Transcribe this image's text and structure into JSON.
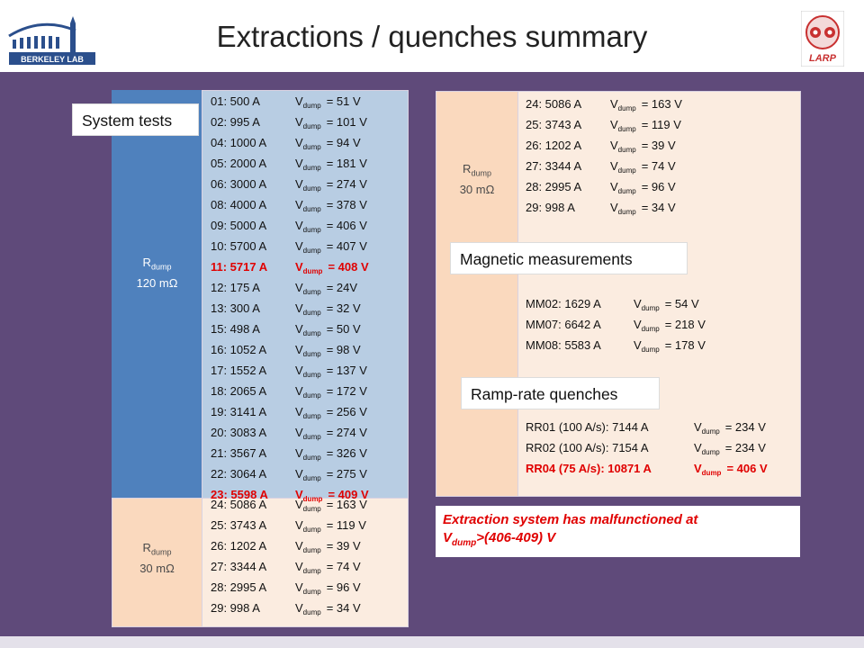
{
  "title": "Extractions / quenches summary",
  "logos": {
    "left_text": "BERKELEY LAB",
    "right_text": "LARP"
  },
  "colors": {
    "band": "#5f4a7a",
    "blue_panel": "#b8cde3",
    "blue_label": "#4f81bd",
    "peach_label": "#fad9be",
    "peach_panel": "#fbece0",
    "red": "#e00000"
  },
  "left": {
    "rdump_high": {
      "r": "R",
      "sub": "dump",
      "value": "120 mΩ"
    },
    "rdump_low": {
      "r": "R",
      "sub": "dump",
      "value": "30 mΩ"
    },
    "system_tests_label": "System tests",
    "rows_high": [
      {
        "name": "01: 500 A",
        "v": "= 51 V",
        "red": false
      },
      {
        "name": "02: 995 A",
        "v": "= 101 V",
        "red": false
      },
      {
        "name": "04: 1000 A",
        "v": "= 94 V",
        "red": false
      },
      {
        "name": "05: 2000 A",
        "v": "= 181 V",
        "red": false
      },
      {
        "name": "06: 3000 A",
        "v": "= 274 V",
        "red": false
      },
      {
        "name": "08: 4000 A",
        "v": "= 378 V",
        "red": false
      },
      {
        "name": "09: 5000 A",
        "v": "= 406 V",
        "red": false
      },
      {
        "name": "10: 5700 A",
        "v": "= 407 V",
        "red": false
      },
      {
        "name": "11: 5717 A",
        "v": "= 408 V",
        "red": true
      },
      {
        "name": "12: 175 A",
        "v": "= 24V",
        "red": false
      },
      {
        "name": "13: 300 A",
        "v": "= 32 V",
        "red": false
      },
      {
        "name": "15: 498 A",
        "v": "= 50 V",
        "red": false
      },
      {
        "name": "16: 1052 A",
        "v": "= 98 V",
        "red": false
      },
      {
        "name": "17: 1552 A",
        "v": "= 137 V",
        "red": false
      },
      {
        "name": "18: 2065 A",
        "v": "= 172 V",
        "red": false
      },
      {
        "name": "19: 3141 A",
        "v": "= 256 V",
        "red": false
      },
      {
        "name": "20: 3083 A",
        "v": "= 274 V",
        "red": false
      },
      {
        "name": "21: 3567 A",
        "v": "= 326 V",
        "red": false
      },
      {
        "name": "22: 3064 A",
        "v": "= 275 V",
        "red": false
      },
      {
        "name": "23: 5598 A",
        "v": "= 409 V",
        "red": true
      }
    ],
    "rows_low": [
      {
        "name": "24: 5086 A",
        "v": "= 163 V",
        "red": false
      },
      {
        "name": "25: 3743 A",
        "v": "= 119 V",
        "red": false
      },
      {
        "name": "26: 1202 A",
        "v": "= 39 V",
        "red": false
      },
      {
        "name": "27: 3344 A",
        "v": "= 74 V",
        "red": false
      },
      {
        "name": "28: 2995 A",
        "v": "= 96 V",
        "red": false
      },
      {
        "name": "29: 998 A",
        "v": "= 34 V",
        "red": false
      }
    ]
  },
  "right": {
    "rdump": {
      "r": "R",
      "sub": "dump",
      "value": "30 mΩ"
    },
    "rows_top": [
      {
        "name": "24: 5086 A",
        "v": "= 163 V",
        "red": false
      },
      {
        "name": "25: 3743 A",
        "v": "= 119 V",
        "red": false
      },
      {
        "name": "26: 1202 A",
        "v": "= 39 V",
        "red": false
      },
      {
        "name": "27: 3344 A",
        "v": "= 74 V",
        "red": false
      },
      {
        "name": "28: 2995 A",
        "v": "= 96 V",
        "red": false
      },
      {
        "name": "29: 998 A",
        "v": "= 34 V",
        "red": false
      }
    ],
    "magnetic_label": "Magnetic measurements",
    "rows_mm": [
      {
        "name": "MM02: 1629 A",
        "v": "= 54 V",
        "red": false
      },
      {
        "name": "MM07: 6642 A",
        "v": "= 218 V",
        "red": false
      },
      {
        "name": "MM08: 5583 A",
        "v": "= 178 V",
        "red": false
      }
    ],
    "ramp_label": "Ramp-rate quenches",
    "rows_rr": [
      {
        "name": "RR01 (100 A/s): 7144 A",
        "v": "= 234 V",
        "red": false
      },
      {
        "name": "RR02 (100 A/s): 7154 A",
        "v": "= 234 V",
        "red": false
      },
      {
        "name": "RR04 (75 A/s): 10871 A",
        "v": "= 406 V",
        "red": true
      }
    ]
  },
  "vdump": {
    "v": "V",
    "sub": "dump"
  },
  "note": {
    "line1": "Extraction system has malfunctioned at",
    "v": "V",
    "sub": "dump",
    "rest": ">(406-409) V"
  }
}
